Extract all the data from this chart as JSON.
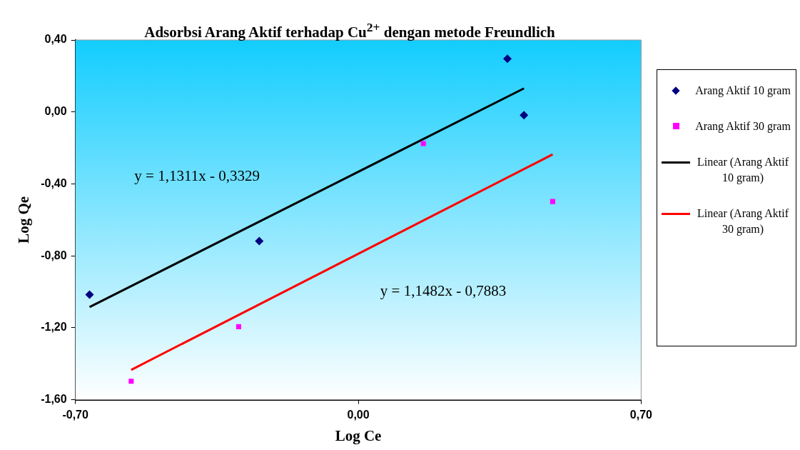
{
  "chart_data": {
    "type": "scatter",
    "title": "Adsorbsi Arang Aktif terhadap Cu$^{2+}$ dengan metode Freundlich",
    "xlabel": "Log Ce",
    "ylabel": "Log Qe",
    "series": [
      {
        "name": "Arang Aktif 10 gram",
        "type": "scatter",
        "marker": "diamond",
        "color": "#000080",
        "x": [
          -0.665,
          -0.245,
          0.369,
          0.41
        ],
        "values": [
          -1.016,
          -0.718,
          0.296,
          -0.018
        ]
      },
      {
        "name": "Arang Aktif 30 gram",
        "type": "scatter",
        "marker": "square",
        "color": "#ff00ff",
        "x": [
          -0.562,
          -0.296,
          0.161,
          0.481
        ],
        "values": [
          -1.497,
          -1.194,
          -0.176,
          -0.498
        ]
      },
      {
        "name": "Linear (Arang Aktif 10 gram)",
        "type": "line",
        "marker": "none",
        "color": "#000000",
        "x": [
          -0.665,
          0.41
        ],
        "values": [
          -1.085,
          0.131
        ]
      },
      {
        "name": "Linear (Arang Aktif 30 gram)",
        "type": "line",
        "marker": "none",
        "color": "#ff0000",
        "x": [
          -0.562,
          0.481
        ],
        "values": [
          -1.434,
          -0.236
        ]
      }
    ],
    "xlim": [
      -0.7,
      0.7
    ],
    "xticks": [
      {
        "value": -0.7,
        "label": "-0,70"
      },
      {
        "value": 0,
        "label": "0,00"
      },
      {
        "value": 0.7,
        "label": "0,70"
      }
    ],
    "ylim": [
      -1.6,
      0.4
    ],
    "yticks": [
      {
        "value": -1.6,
        "label": "-1,60"
      },
      {
        "value": -1.2,
        "label": "-1,20"
      },
      {
        "value": -0.8,
        "label": "-0,80"
      },
      {
        "value": -0.4,
        "label": "-0,40"
      },
      {
        "value": 0,
        "label": "0,00"
      },
      {
        "value": 0.4,
        "label": "0,40"
      }
    ],
    "grid": false,
    "legend": "right",
    "annotations": [
      "y = 1,1311x - 0,3329",
      "y = 1,1482x - 0,7883"
    ]
  }
}
